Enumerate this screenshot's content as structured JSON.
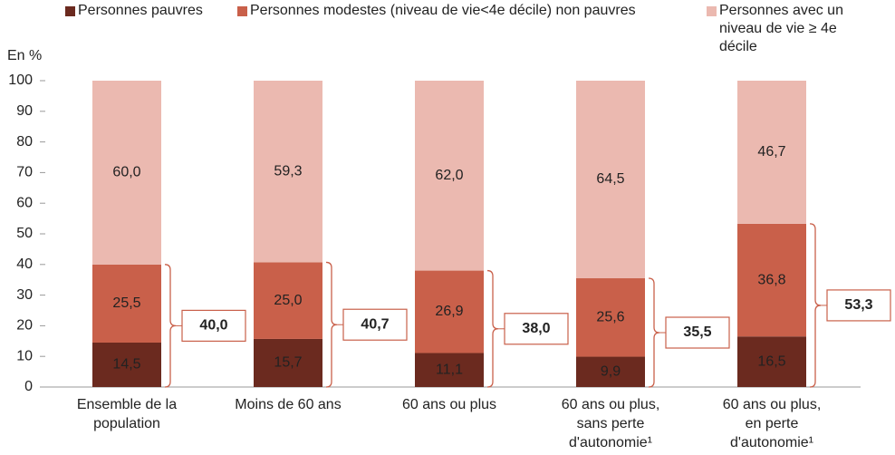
{
  "chart_data": {
    "type": "bar",
    "stacked": true,
    "y_label": "En %",
    "categories": [
      [
        "Ensemble de la",
        "population"
      ],
      [
        "Moins de 60 ans"
      ],
      [
        "60 ans ou plus"
      ],
      [
        "60 ans ou plus,",
        "sans perte",
        "d'autonomie¹"
      ],
      [
        "60 ans ou plus,",
        "en perte",
        "d'autonomie¹"
      ]
    ],
    "series": [
      {
        "name": "Personnes pauvres",
        "color": "#6b2a1f",
        "values": [
          14.5,
          15.7,
          11.1,
          9.9,
          16.5
        ],
        "value_labels": [
          "14,5",
          "15,7",
          "11,1",
          "9,9",
          "16,5"
        ]
      },
      {
        "name": "Personnes modestes (niveau de vie<4e décile) non pauvres",
        "color": "#c9604a",
        "values": [
          25.5,
          25.0,
          26.9,
          25.6,
          36.8
        ],
        "value_labels": [
          "25,5",
          "25,0",
          "26,9",
          "25,6",
          "36,8"
        ]
      },
      {
        "name": "Personnes avec un niveau de vie ≥ 4e décile",
        "color": "#ebb9b0",
        "values": [
          60.0,
          59.3,
          62.0,
          64.5,
          46.7
        ],
        "value_labels": [
          "60,0",
          "59,3",
          "62,0",
          "64,5",
          "46,7"
        ]
      }
    ],
    "totals": {
      "values": [
        40.0,
        40.7,
        38.0,
        35.5,
        53.3
      ],
      "value_labels": [
        "40,0",
        "40,7",
        "38,0",
        "35,5",
        "53,3"
      ]
    },
    "ylim": [
      0,
      100
    ],
    "yticks": [
      0,
      10,
      20,
      30,
      40,
      50,
      60,
      70,
      80,
      90,
      100
    ]
  }
}
